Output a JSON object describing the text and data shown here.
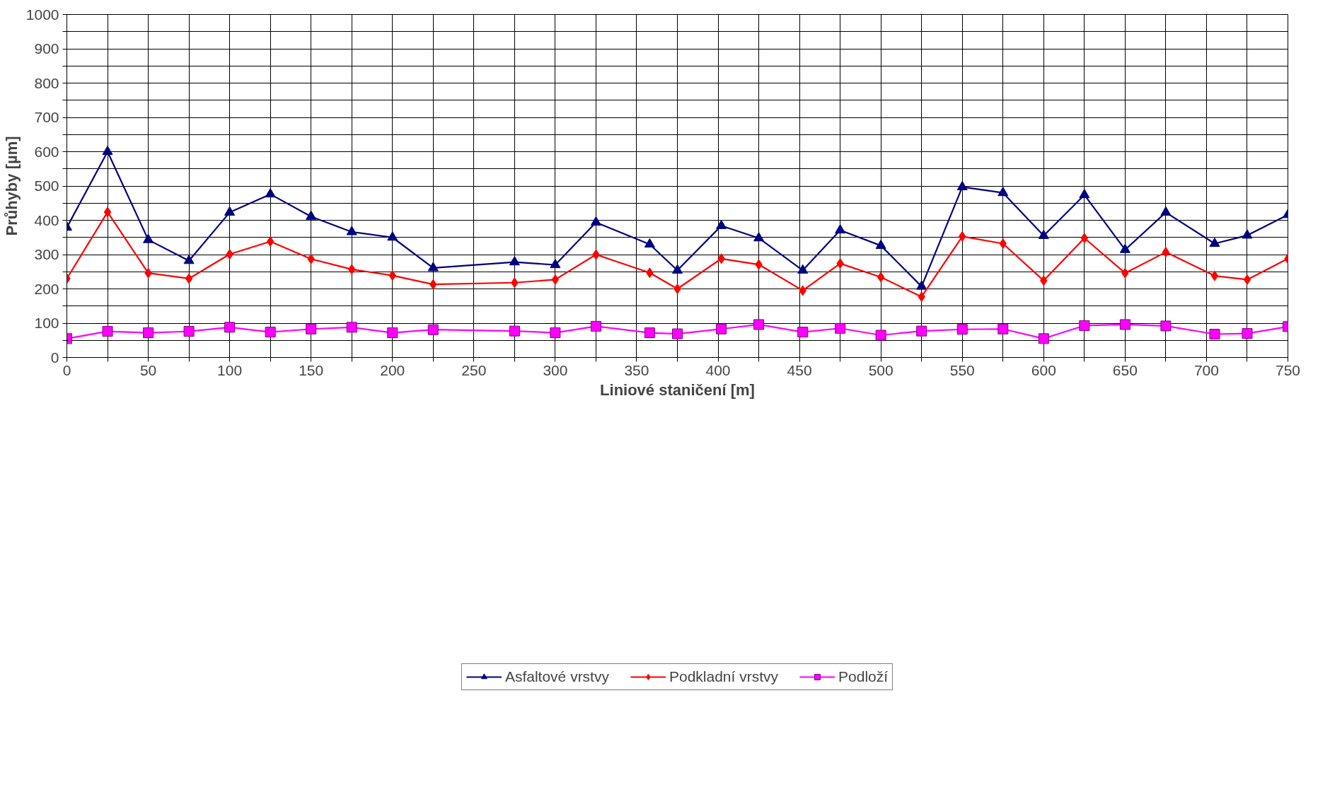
{
  "chart_data": {
    "type": "line",
    "xlabel": "Liniové staničení [m]",
    "ylabel": "Průhyby [µm]",
    "x": [
      0,
      25,
      50,
      75,
      100,
      125,
      150,
      175,
      200,
      225,
      275,
      300,
      325,
      358,
      375,
      402,
      425,
      452,
      475,
      500,
      525,
      550,
      575,
      600,
      625,
      650,
      675,
      705,
      725,
      750
    ],
    "series": [
      {
        "name": "Asfaltové vrstvy",
        "color": "#000080",
        "marker": "triangle",
        "values": [
          379,
          600,
          343,
          282,
          423,
          476,
          411,
          366,
          350,
          261,
          278,
          270,
          394,
          330,
          254,
          384,
          348,
          254,
          371,
          326,
          207,
          497,
          480,
          355,
          474,
          314,
          423,
          332,
          356,
          416
        ]
      },
      {
        "name": "Podkladní vrstvy",
        "color": "#ff0000",
        "marker": "diamond",
        "values": [
          230,
          424,
          246,
          230,
          301,
          338,
          287,
          257,
          239,
          213,
          218,
          227,
          300,
          247,
          200,
          288,
          271,
          195,
          274,
          234,
          177,
          353,
          332,
          224,
          348,
          246,
          307,
          238,
          227,
          288
        ]
      },
      {
        "name": "Podloží",
        "color": "#ff00ff",
        "marker": "square",
        "values": [
          55,
          76,
          72,
          76,
          88,
          74,
          83,
          88,
          72,
          81,
          77,
          72,
          91,
          72,
          69,
          83,
          96,
          74,
          85,
          65,
          77,
          82,
          83,
          55,
          93,
          96,
          92,
          68,
          70,
          90
        ]
      }
    ],
    "xlim": [
      0,
      750
    ],
    "xticks": [
      0,
      {
        "value": 25,
        "label": null
      },
      50,
      {
        "value": 75,
        "label": null
      },
      100,
      {
        "value": 125,
        "label": null
      },
      150,
      {
        "value": 175,
        "label": null
      },
      200,
      {
        "value": 225,
        "label": null
      },
      250,
      {
        "value": 275,
        "label": null
      },
      300,
      {
        "value": 325,
        "label": null
      },
      350,
      {
        "value": 375,
        "label": null
      },
      400,
      {
        "value": 425,
        "label": null
      },
      450,
      {
        "value": 475,
        "label": null
      },
      500,
      {
        "value": 525,
        "label": null
      },
      550,
      {
        "value": 575,
        "label": null
      },
      600,
      {
        "value": 625,
        "label": null
      },
      650,
      {
        "value": 675,
        "label": null
      },
      700,
      {
        "value": 725,
        "label": null
      },
      750
    ],
    "ylim": [
      0,
      1000
    ],
    "yticks": [
      0,
      {
        "value": 50,
        "label": null
      },
      100,
      {
        "value": 150,
        "label": null
      },
      200,
      {
        "value": 250,
        "label": null
      },
      300,
      {
        "value": 350,
        "label": null
      },
      400,
      {
        "value": 450,
        "label": null
      },
      500,
      {
        "value": 550,
        "label": null
      },
      600,
      {
        "value": 650,
        "label": null
      },
      700,
      {
        "value": 750,
        "label": null
      },
      800,
      {
        "value": 850,
        "label": null
      },
      900,
      {
        "value": 950,
        "label": null
      },
      1000
    ],
    "grid": true,
    "legend": "bottom",
    "line_style": "solid"
  }
}
